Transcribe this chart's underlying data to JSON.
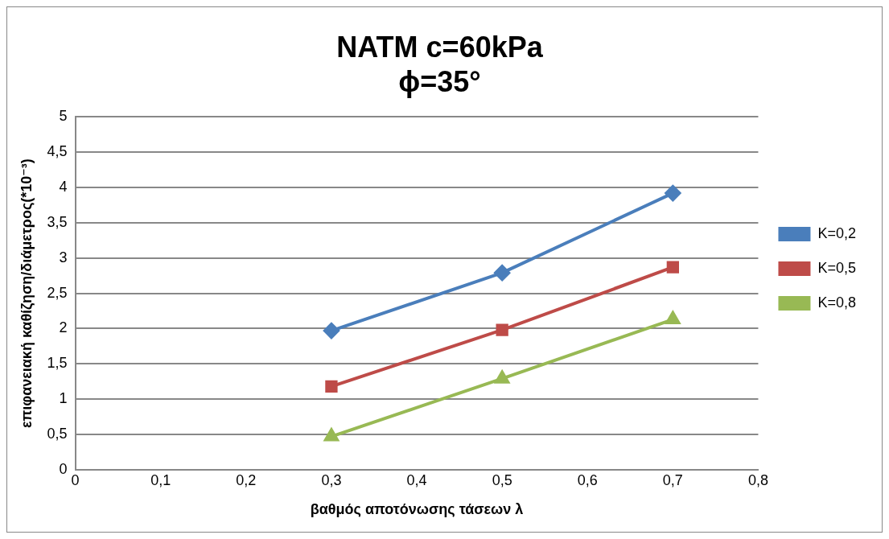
{
  "chart_data": {
    "type": "line",
    "title": [
      "NATM c=60kPa",
      "ϕ=35°"
    ],
    "xlabel": "βαθμός αποτόνωσης τάσεων λ",
    "ylabel": "επιφανειακή καθίζηση/διάμετρος(*10⁻³)",
    "x": [
      0.3,
      0.5,
      0.7
    ],
    "series": [
      {
        "name": "K=0,2",
        "color": "#4a7ebb",
        "marker": "diamond",
        "values": [
          1.97,
          2.79,
          3.92
        ]
      },
      {
        "name": "K=0,5",
        "color": "#be4b48",
        "marker": "square",
        "values": [
          1.18,
          1.98,
          2.87
        ]
      },
      {
        "name": "K=0,8",
        "color": "#98b954",
        "marker": "triangle",
        "values": [
          0.47,
          1.29,
          2.13
        ]
      }
    ],
    "xlim": [
      0,
      0.8
    ],
    "xticks": [
      0,
      {
        "value": 0.1,
        "label": "0,1"
      },
      {
        "value": 0.2,
        "label": "0,2"
      },
      {
        "value": 0.3,
        "label": "0,3"
      },
      {
        "value": 0.4,
        "label": "0,4"
      },
      {
        "value": 0.5,
        "label": "0,5"
      },
      {
        "value": 0.6,
        "label": "0,6"
      },
      {
        "value": 0.7,
        "label": "0,7"
      },
      {
        "value": 0.8,
        "label": "0,8"
      }
    ],
    "ylim": [
      0,
      5
    ],
    "yticks": [
      0,
      {
        "value": 0.5,
        "label": "0,5"
      },
      1,
      {
        "value": 1.5,
        "label": "1,5"
      },
      2,
      {
        "value": 2.5,
        "label": "2,5"
      },
      3,
      {
        "value": 3.5,
        "label": "3,5"
      },
      4,
      {
        "value": 4.5,
        "label": "4,5"
      },
      5
    ],
    "grid": "y",
    "legend": "right",
    "line_style": "solid"
  }
}
